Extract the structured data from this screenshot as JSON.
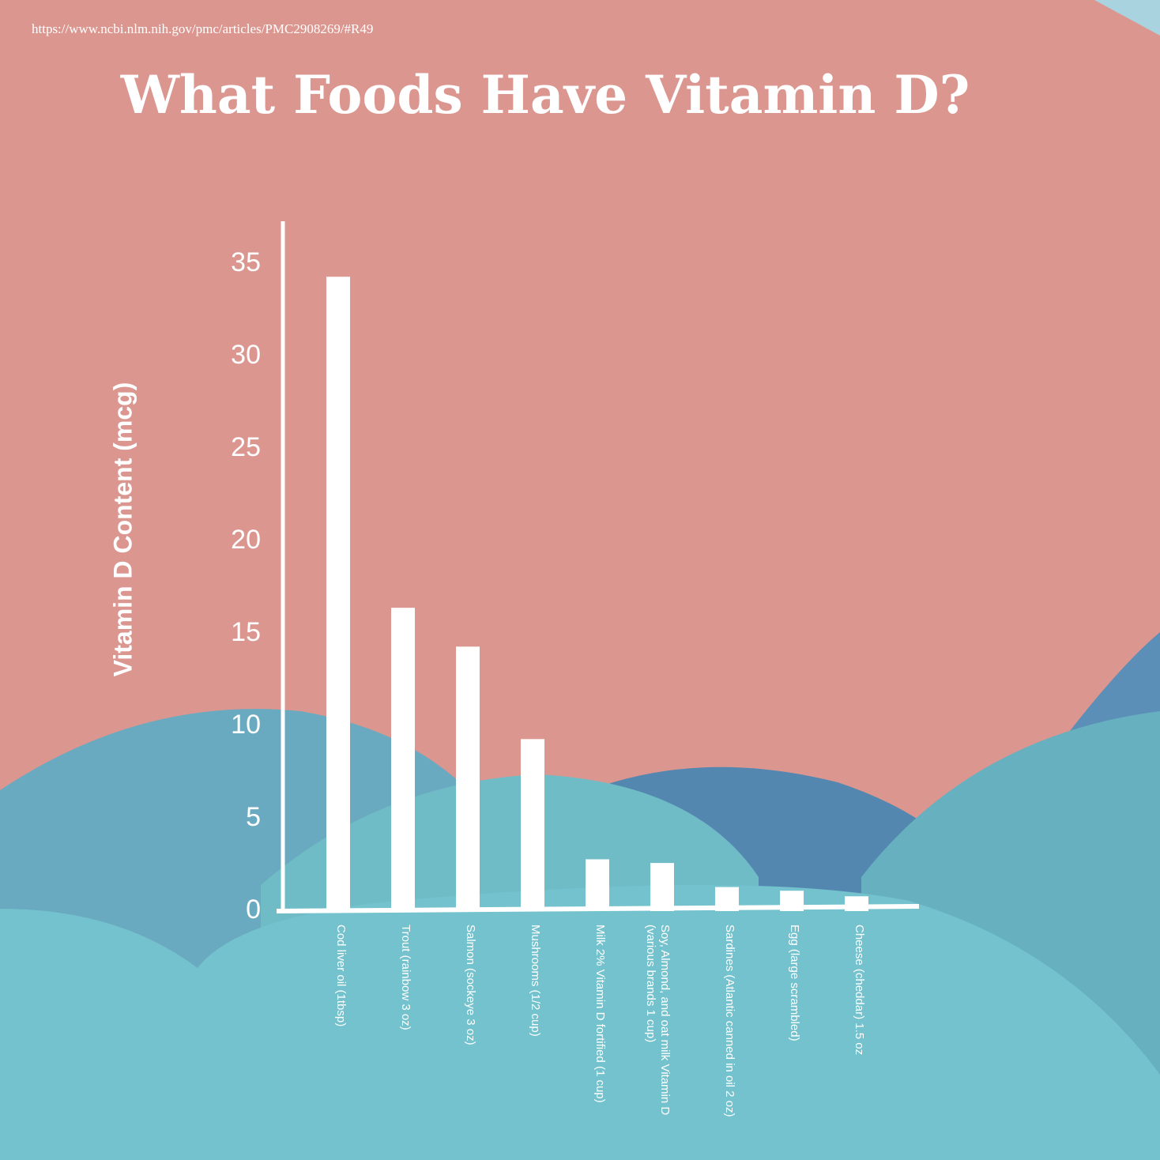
{
  "source_url": "https://www.ncbi.nlm.nih.gov/pmc/articles/PMC2908269/#R49",
  "chart_data": {
    "type": "bar",
    "title": "What Foods Have Vitamin D?",
    "y_label": "Vitamin D Content (mcg)",
    "categories": [
      "Cod liver oil (1tbsp)",
      "Trout (rainbow 3 oz)",
      "Salmon (sockeye 3 oz)",
      "Mushrooms (1/2 cup)",
      "Milk 2% Vitamin D fortified (1 cup)",
      "Soy, Almond, and oat milk Vitamin D (various brands 1 cup)",
      "Sardines (Atlantic canned in oil 2 oz)",
      "Egg (large scrambled)",
      "Cheese (cheddar) 1.5 oz"
    ],
    "values": [
      34.3,
      16.4,
      14.3,
      9.3,
      2.8,
      2.6,
      1.3,
      1.1,
      0.8
    ],
    "color": "#ffffff",
    "ylim": [
      0,
      37.3
    ],
    "yticks": [
      0,
      5,
      10,
      15,
      20,
      25,
      30,
      35
    ],
    "grid": false
  }
}
